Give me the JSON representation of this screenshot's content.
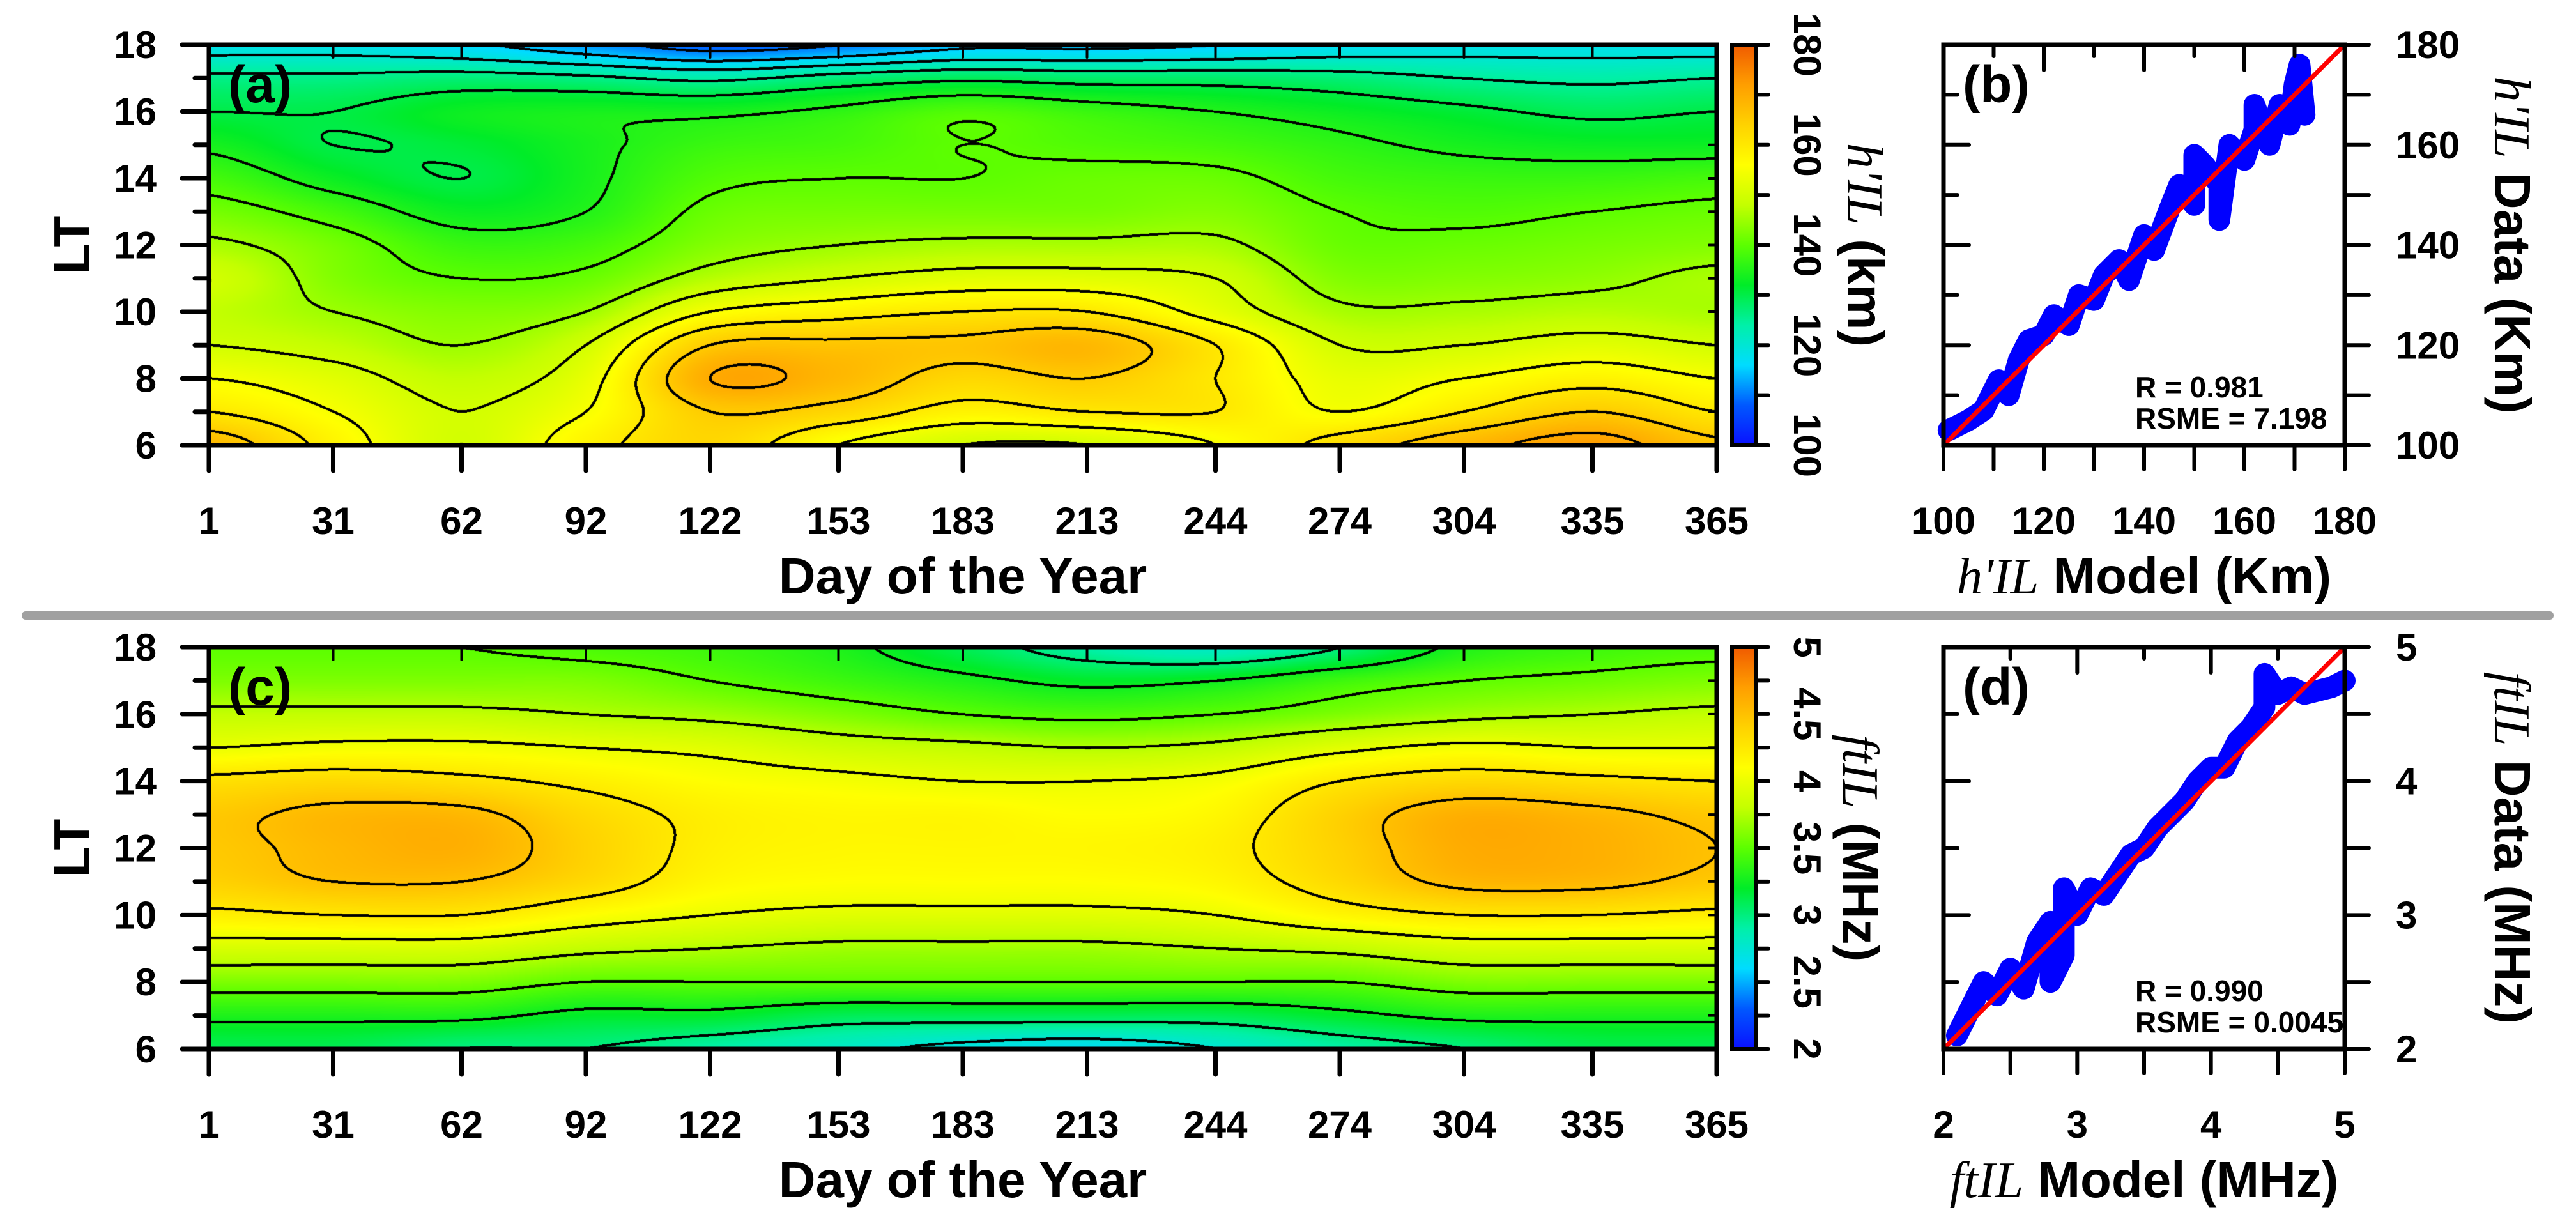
{
  "colors": {
    "scatter": "#0000ff",
    "fit_line": "#ff0000",
    "separator": "#a0a0a0",
    "contour_line": "#000000"
  },
  "colormap": [
    "#0a10ff",
    "#0058ff",
    "#00dcff",
    "#00f0a8",
    "#00ec28",
    "#5cff00",
    "#c4ff00",
    "#ffff00",
    "#ffd200",
    "#ff9e00",
    "#f05a00"
  ],
  "chart_data": [
    {
      "type": "heatmap",
      "panel_label": "(a)",
      "x_label": "Day of the Year",
      "y_label": "LT",
      "x_ticks": [
        1,
        31,
        62,
        92,
        122,
        153,
        183,
        213,
        244,
        274,
        304,
        335,
        365
      ],
      "y_ticks": [
        6,
        8,
        10,
        12,
        14,
        16,
        18
      ],
      "x_range": [
        1,
        365
      ],
      "y_range": [
        6,
        18
      ],
      "contour_interval": 5,
      "colorbar": {
        "range": [
          100,
          180
        ],
        "ticks": [
          100,
          120,
          140,
          160,
          180
        ],
        "minor_step": 10,
        "title_italic": "h'IL",
        "title_rest": " (km)"
      },
      "grid_x_day": [
        1,
        31,
        62,
        92,
        122,
        153,
        183,
        213,
        244,
        274,
        304,
        335,
        365
      ],
      "grid_y_lt": [
        6,
        7,
        8,
        9,
        10,
        11,
        12,
        13,
        14,
        15,
        16,
        17,
        18
      ],
      "z": [
        [
          168,
          158,
          150,
          158,
          163,
          155,
          150,
          150,
          155,
          162,
          168,
          172,
          166
        ],
        [
          160,
          155,
          150,
          155,
          165,
          163,
          158,
          160,
          160,
          155,
          160,
          165,
          160
        ],
        [
          155,
          152,
          148,
          153,
          170,
          168,
          163,
          165,
          160,
          153,
          155,
          158,
          155
        ],
        [
          150,
          148,
          145,
          150,
          165,
          166,
          166,
          168,
          160,
          150,
          150,
          152,
          150
        ],
        [
          148,
          145,
          143,
          145,
          155,
          158,
          160,
          160,
          153,
          146,
          146,
          147,
          146
        ],
        [
          150,
          143,
          140,
          141,
          147,
          150,
          152,
          152,
          150,
          143,
          143,
          144,
          146
        ],
        [
          146,
          142,
          137,
          138,
          143,
          145,
          146,
          146,
          146,
          141,
          141,
          142,
          143
        ],
        [
          142,
          138,
          133,
          135,
          141,
          142,
          142,
          142,
          143,
          140,
          139,
          140,
          141
        ],
        [
          138,
          133,
          130,
          134,
          139,
          140,
          140,
          141,
          141,
          138,
          137,
          137,
          138
        ],
        [
          134,
          130,
          131,
          134,
          137,
          138,
          140,
          139,
          138,
          136,
          134,
          133,
          133
        ],
        [
          130,
          130,
          133,
          134,
          134,
          136,
          139,
          137,
          135,
          133,
          131,
          129,
          130
        ],
        [
          126,
          126,
          127,
          126,
          124,
          127,
          129,
          128,
          128,
          127,
          125,
          124,
          125
        ],
        [
          118,
          118,
          116,
          112,
          108,
          110,
          114,
          114,
          115,
          117,
          118,
          118,
          118
        ]
      ]
    },
    {
      "type": "scatter",
      "panel_label": "(b)",
      "x_label_italic": "h'IL",
      "x_label_rest": " Model (Km)",
      "y_label_italic": "h'IL",
      "y_label_rest": " Data (Km)",
      "x_ticks": [
        100,
        120,
        140,
        160,
        180
      ],
      "y_ticks": [
        100,
        120,
        140,
        160,
        180
      ],
      "x_range": [
        100,
        180
      ],
      "y_range": [
        100,
        180
      ],
      "minor_step": 10,
      "stats": [
        "R = 0.981",
        "RSME = 7.198"
      ],
      "fit_line": [
        [
          100,
          100
        ],
        [
          180,
          180
        ]
      ],
      "points": [
        [
          101,
          103
        ],
        [
          103,
          104
        ],
        [
          105,
          105
        ],
        [
          108,
          107
        ],
        [
          111,
          113
        ],
        [
          113,
          110
        ],
        [
          115,
          117
        ],
        [
          117,
          121
        ],
        [
          120,
          122
        ],
        [
          122,
          126
        ],
        [
          125,
          124
        ],
        [
          127,
          130
        ],
        [
          130,
          129
        ],
        [
          132,
          134
        ],
        [
          135,
          137
        ],
        [
          137,
          133
        ],
        [
          140,
          142
        ],
        [
          142,
          139
        ],
        [
          145,
          147
        ],
        [
          147,
          152
        ],
        [
          150,
          148
        ],
        [
          152,
          156
        ],
        [
          155,
          152
        ],
        [
          157,
          160
        ],
        [
          160,
          157
        ],
        [
          162,
          163
        ],
        [
          165,
          160
        ],
        [
          167,
          168
        ],
        [
          169,
          164
        ],
        [
          170,
          172
        ],
        [
          171,
          176
        ],
        [
          172,
          166
        ],
        [
          155,
          145
        ],
        [
          150,
          158
        ],
        [
          162,
          168
        ]
      ]
    },
    {
      "type": "heatmap",
      "panel_label": "(c)",
      "x_label": "Day of the Year",
      "y_label": "LT",
      "x_ticks": [
        1,
        31,
        62,
        92,
        122,
        153,
        183,
        213,
        244,
        274,
        304,
        335,
        365
      ],
      "y_ticks": [
        6,
        8,
        10,
        12,
        14,
        16,
        18
      ],
      "x_range": [
        1,
        365
      ],
      "y_range": [
        6,
        18
      ],
      "contour_interval": 0.25,
      "colorbar": {
        "range": [
          2,
          5
        ],
        "ticks": [
          2,
          2.5,
          3,
          3.5,
          4,
          4.5,
          5
        ],
        "minor_step": 0.25,
        "title_italic": "ftIL",
        "title_rest": " (MHz)"
      },
      "grid_x_day": [
        1,
        31,
        62,
        92,
        122,
        153,
        183,
        213,
        244,
        274,
        304,
        335,
        365
      ],
      "grid_y_lt": [
        6,
        7,
        8,
        9,
        10,
        11,
        12,
        13,
        14,
        15,
        16,
        17,
        18
      ],
      "z": [
        [
          3.1,
          3.1,
          3.0,
          3.0,
          2.9,
          2.8,
          2.7,
          2.65,
          2.75,
          2.9,
          3.0,
          3.1,
          3.1
        ],
        [
          3.3,
          3.3,
          3.3,
          3.2,
          3.2,
          3.1,
          3.1,
          3.1,
          3.1,
          3.2,
          3.3,
          3.3,
          3.3
        ],
        [
          3.6,
          3.6,
          3.6,
          3.5,
          3.5,
          3.5,
          3.5,
          3.5,
          3.5,
          3.5,
          3.6,
          3.6,
          3.6
        ],
        [
          3.9,
          3.9,
          3.9,
          3.8,
          3.75,
          3.7,
          3.7,
          3.7,
          3.75,
          3.8,
          3.9,
          3.9,
          3.9
        ],
        [
          4.2,
          4.25,
          4.25,
          4.1,
          4.0,
          3.95,
          3.95,
          3.95,
          4.0,
          4.15,
          4.25,
          4.25,
          4.2
        ],
        [
          4.4,
          4.5,
          4.5,
          4.35,
          4.15,
          4.1,
          4.1,
          4.1,
          4.15,
          4.35,
          4.55,
          4.55,
          4.45
        ],
        [
          4.45,
          4.55,
          4.6,
          4.4,
          4.2,
          4.15,
          4.15,
          4.15,
          4.2,
          4.4,
          4.62,
          4.6,
          4.5
        ],
        [
          4.45,
          4.55,
          4.55,
          4.35,
          4.2,
          4.15,
          4.15,
          4.1,
          4.15,
          4.4,
          4.6,
          4.55,
          4.45
        ],
        [
          4.3,
          4.35,
          4.3,
          4.2,
          4.1,
          4.05,
          4.0,
          4.0,
          4.05,
          4.25,
          4.35,
          4.3,
          4.25
        ],
        [
          4.0,
          4.05,
          4.05,
          4.0,
          3.95,
          3.85,
          3.8,
          3.75,
          3.8,
          3.95,
          4.05,
          4.0,
          4.0
        ],
        [
          3.8,
          3.8,
          3.8,
          3.75,
          3.7,
          3.6,
          3.5,
          3.45,
          3.5,
          3.6,
          3.7,
          3.75,
          3.8
        ],
        [
          3.6,
          3.6,
          3.6,
          3.6,
          3.5,
          3.4,
          3.3,
          3.2,
          3.25,
          3.4,
          3.5,
          3.55,
          3.6
        ],
        [
          3.5,
          3.5,
          3.5,
          3.45,
          3.4,
          3.3,
          3.1,
          2.9,
          2.8,
          3.0,
          3.3,
          3.4,
          3.45
        ]
      ]
    },
    {
      "type": "scatter",
      "panel_label": "(d)",
      "x_label_italic": "ftIL",
      "x_label_rest": " Model (MHz)",
      "y_label_italic": "ftIL",
      "y_label_rest": " Data (MHz)",
      "x_ticks": [
        2,
        3,
        4,
        5
      ],
      "y_ticks": [
        2,
        3,
        4,
        5
      ],
      "x_range": [
        2,
        5
      ],
      "y_range": [
        2,
        5
      ],
      "minor_step": 0.5,
      "stats": [
        "R = 0.990",
        "RSME = 0.0045"
      ],
      "fit_line": [
        [
          2,
          2
        ],
        [
          5,
          5
        ]
      ],
      "points": [
        [
          2.1,
          2.1
        ],
        [
          2.2,
          2.3
        ],
        [
          2.3,
          2.5
        ],
        [
          2.4,
          2.4
        ],
        [
          2.5,
          2.6
        ],
        [
          2.6,
          2.45
        ],
        [
          2.7,
          2.8
        ],
        [
          2.8,
          2.95
        ],
        [
          2.9,
          2.7
        ],
        [
          3.0,
          3.0
        ],
        [
          3.1,
          3.2
        ],
        [
          3.2,
          3.15
        ],
        [
          3.3,
          3.3
        ],
        [
          3.4,
          3.45
        ],
        [
          3.5,
          3.5
        ],
        [
          3.6,
          3.65
        ],
        [
          3.7,
          3.75
        ],
        [
          3.8,
          3.85
        ],
        [
          3.9,
          4.0
        ],
        [
          4.0,
          4.1
        ],
        [
          4.1,
          4.1
        ],
        [
          4.2,
          4.3
        ],
        [
          4.3,
          4.4
        ],
        [
          4.4,
          4.55
        ],
        [
          4.5,
          4.65
        ],
        [
          4.6,
          4.7
        ],
        [
          4.7,
          4.65
        ],
        [
          4.9,
          4.7
        ],
        [
          5.0,
          4.75
        ],
        [
          4.4,
          4.8
        ],
        [
          2.9,
          3.2
        ],
        [
          2.8,
          2.5
        ]
      ]
    }
  ]
}
